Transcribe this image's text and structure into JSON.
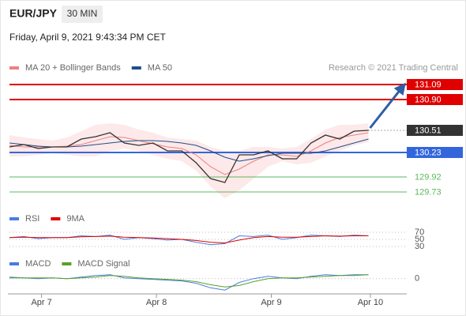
{
  "header": {
    "symbol": "EUR/JPY",
    "interval": "30 MIN",
    "datetime": "Friday, April 9, 2021 9:43:34 PM CET",
    "source": "Research © 2021 Trading Central"
  },
  "chart_data": [
    {
      "type": "line",
      "x": [
        0,
        3,
        6,
        9,
        12,
        15,
        18,
        21,
        24,
        27,
        30,
        33,
        36,
        39,
        42,
        45,
        48,
        51,
        54,
        57,
        60,
        63,
        66,
        69,
        72,
        75
      ],
      "values": [
        130.3,
        130.33,
        130.28,
        130.3,
        130.3,
        130.4,
        130.43,
        130.48,
        130.35,
        130.32,
        130.35,
        130.25,
        130.25,
        130.1,
        129.9,
        129.85,
        130.2,
        130.2,
        130.25,
        130.15,
        130.15,
        130.35,
        130.45,
        130.4,
        130.5,
        130.51
      ],
      "color": "#333333",
      "series": [
        {
          "name": "MA 20 + Bollinger Bands",
          "color": "#f08080",
          "values": [
            130.32,
            130.3,
            130.3,
            130.3,
            130.31,
            130.33,
            130.38,
            130.43,
            130.42,
            130.38,
            130.34,
            130.3,
            130.28,
            130.2,
            130.05,
            129.95,
            130.02,
            130.12,
            130.2,
            130.2,
            130.18,
            130.25,
            130.35,
            130.42,
            130.45,
            130.48
          ],
          "band": {
            "color": "#fde3e3",
            "upper": [
              130.45,
              130.42,
              130.4,
              130.38,
              130.42,
              130.5,
              130.58,
              130.6,
              130.58,
              130.52,
              130.48,
              130.42,
              130.4,
              130.38,
              130.3,
              130.25,
              130.25,
              130.3,
              130.3,
              130.28,
              130.3,
              130.4,
              130.52,
              130.58,
              130.58,
              130.6
            ],
            "lower": [
              130.18,
              130.18,
              130.2,
              130.22,
              130.2,
              130.18,
              130.18,
              130.25,
              130.28,
              130.25,
              130.2,
              130.15,
              130.12,
              130.0,
              129.8,
              129.65,
              129.75,
              129.9,
              130.05,
              130.12,
              130.08,
              130.1,
              130.18,
              130.25,
              130.32,
              130.36
            ]
          }
        },
        {
          "name": "MA 50",
          "color": "#1f4e8c",
          "values": [
            130.35,
            130.33,
            130.31,
            130.3,
            130.3,
            130.31,
            130.33,
            130.35,
            130.37,
            130.38,
            130.38,
            130.37,
            130.35,
            130.32,
            130.25,
            130.17,
            130.12,
            130.15,
            130.19,
            130.22,
            130.22,
            130.22,
            130.25,
            130.3,
            130.35,
            130.4
          ]
        }
      ],
      "levels": [
        {
          "value": 131.09,
          "color": "#e00000",
          "line_style": "solid",
          "label_box": true
        },
        {
          "value": 130.9,
          "label": "130.90",
          "color": "#e00000",
          "line_style": "solid",
          "label_box": true
        },
        {
          "value": 130.51,
          "color": "#333333",
          "line_style": "dotted",
          "label_box": true
        },
        {
          "value": 130.23,
          "color": "#3366dd",
          "line_style": "solid",
          "label_box": true
        },
        {
          "value": 129.92,
          "color": "#5cb85c",
          "line_style": "solid",
          "label_box": false
        },
        {
          "value": 129.73,
          "color": "#5cb85c",
          "line_style": "solid",
          "label_box": false
        }
      ],
      "xlim": [
        0,
        83
      ],
      "ylim": [
        129.54,
        131.21
      ]
    },
    {
      "type": "line",
      "x": [
        0,
        3,
        6,
        9,
        12,
        15,
        18,
        21,
        24,
        27,
        30,
        33,
        36,
        39,
        42,
        45,
        48,
        51,
        54,
        57,
        60,
        63,
        66,
        69,
        72,
        75
      ],
      "series": [
        {
          "name": "RSI",
          "color": "#4a7ce0",
          "values": [
            55,
            58,
            52,
            55,
            55,
            60,
            58,
            62,
            50,
            55,
            52,
            48,
            50,
            42,
            35,
            38,
            60,
            58,
            62,
            50,
            55,
            62,
            60,
            58,
            62,
            60
          ]
        },
        {
          "name": "9MA",
          "color": "#e00000",
          "values": [
            55,
            56,
            55,
            55,
            55,
            57,
            58,
            59,
            56,
            55,
            54,
            52,
            50,
            47,
            42,
            40,
            48,
            55,
            58,
            56,
            56,
            58,
            60,
            59,
            60,
            60
          ]
        }
      ],
      "xlim": [
        0,
        83
      ],
      "ylim": [
        16.7,
        83.3
      ],
      "yticks": [
        70,
        50,
        30
      ],
      "grid": true
    },
    {
      "type": "line",
      "x": [
        0,
        3,
        6,
        9,
        12,
        15,
        18,
        21,
        24,
        27,
        30,
        33,
        36,
        39,
        42,
        45,
        48,
        51,
        54,
        57,
        60,
        63,
        66,
        69,
        72,
        75
      ],
      "series": [
        {
          "name": "MACD",
          "color": "#4a7ce0",
          "values": [
            0.02,
            0.01,
            0.0,
            0.01,
            0.0,
            0.02,
            0.04,
            0.05,
            0.01,
            0.0,
            -0.01,
            -0.02,
            -0.03,
            -0.06,
            -0.12,
            -0.15,
            -0.05,
            0.0,
            0.03,
            0.01,
            0.0,
            0.03,
            0.05,
            0.04,
            0.05,
            0.05
          ]
        },
        {
          "name": "MACD Signal",
          "color": "#5aa02c",
          "values": [
            0.01,
            0.01,
            0.01,
            0.01,
            0.0,
            0.01,
            0.02,
            0.04,
            0.03,
            0.01,
            0.0,
            -0.01,
            -0.02,
            -0.04,
            -0.08,
            -0.11,
            -0.09,
            -0.04,
            0.0,
            0.01,
            0.01,
            0.02,
            0.03,
            0.04,
            0.04,
            0.05
          ]
        }
      ],
      "xlim": [
        0,
        83
      ],
      "ylim": [
        -0.2,
        0.1
      ],
      "yticks": [
        0
      ],
      "grid": true,
      "xticks": [
        {
          "value": 6.7,
          "label": "Apr 7"
        },
        {
          "value": 30.7,
          "label": "Apr 8"
        },
        {
          "value": 54.7,
          "label": "Apr 9"
        },
        {
          "value": 75.4,
          "label": "Apr 10"
        }
      ]
    }
  ]
}
